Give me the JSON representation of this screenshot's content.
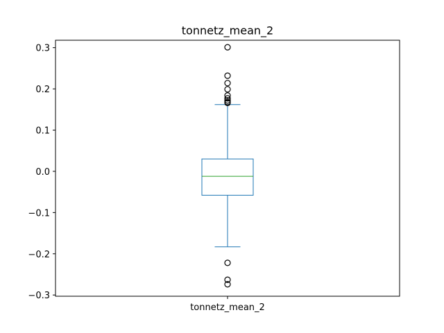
{
  "chart_data": {
    "type": "box",
    "title": "tonnetz_mean_2",
    "categories": [
      "tonnetz_mean_2"
    ],
    "ylim": [
      -0.303,
      0.318
    ],
    "yticks": [
      -0.3,
      -0.2,
      -0.1,
      0.0,
      0.1,
      0.2,
      0.3
    ],
    "ytick_labels": [
      "−0.3",
      "−0.2",
      "−0.1",
      "0.0",
      "0.1",
      "0.2",
      "0.3"
    ],
    "grid": false,
    "series": [
      {
        "whisker_low": -0.183,
        "q1": -0.058,
        "median": -0.012,
        "q3": 0.03,
        "whisker_high": 0.162,
        "outliers": [
          0.301,
          0.232,
          0.214,
          0.199,
          0.184,
          0.177,
          0.172,
          0.168,
          0.166,
          -0.222,
          -0.263,
          -0.274
        ]
      }
    ],
    "colors": {
      "box": "#1f77b4",
      "median": "#2ca02c",
      "outlier_edge": "#000000"
    }
  }
}
